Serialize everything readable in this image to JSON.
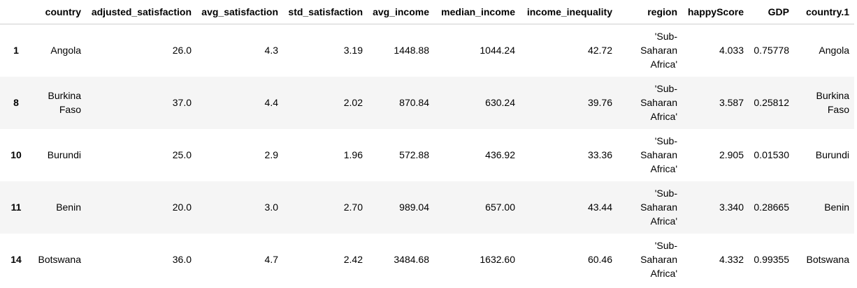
{
  "table": {
    "columns": [
      "",
      "country",
      "adjusted_satisfaction",
      "avg_satisfaction",
      "std_satisfaction",
      "avg_income",
      "median_income",
      "income_inequality",
      "region",
      "happyScore",
      "GDP",
      "country.1"
    ],
    "rows": [
      {
        "index": "1",
        "cells": [
          "Angola",
          "26.0",
          "4.3",
          "3.19",
          "1448.88",
          "1044.24",
          "42.72",
          "'Sub-Saharan Africa'",
          "4.033",
          "0.75778",
          "Angola"
        ]
      },
      {
        "index": "8",
        "cells": [
          "Burkina Faso",
          "37.0",
          "4.4",
          "2.02",
          "870.84",
          "630.24",
          "39.76",
          "'Sub-Saharan Africa'",
          "3.587",
          "0.25812",
          "Burkina Faso"
        ]
      },
      {
        "index": "10",
        "cells": [
          "Burundi",
          "25.0",
          "2.9",
          "1.96",
          "572.88",
          "436.92",
          "33.36",
          "'Sub-Saharan Africa'",
          "2.905",
          "0.01530",
          "Burundi"
        ]
      },
      {
        "index": "11",
        "cells": [
          "Benin",
          "20.0",
          "3.0",
          "2.70",
          "989.04",
          "657.00",
          "43.44",
          "'Sub-Saharan Africa'",
          "3.340",
          "0.28665",
          "Benin"
        ]
      },
      {
        "index": "14",
        "cells": [
          "Botswana",
          "36.0",
          "4.7",
          "2.42",
          "3484.68",
          "1632.60",
          "60.46",
          "'Sub-Saharan Africa'",
          "4.332",
          "0.99355",
          "Botswana"
        ]
      }
    ]
  }
}
